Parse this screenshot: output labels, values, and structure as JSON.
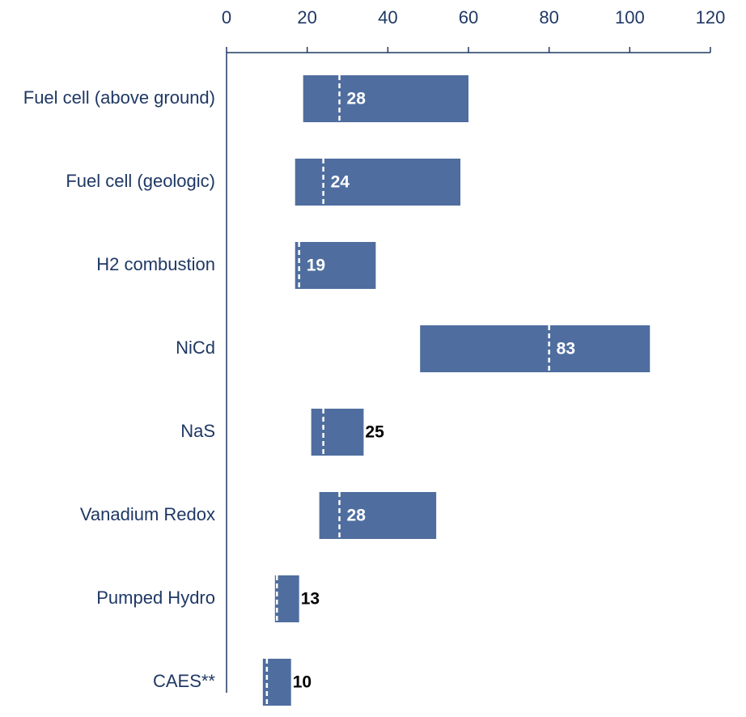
{
  "chart_data": {
    "type": "floating-bar",
    "categories": [
      "Fuel cell (above ground)",
      "Fuel cell (geologic)",
      "H2 combustion",
      "NiCd",
      "NaS",
      "Vanadium Redox",
      "Pumped Hydro",
      "CAES**"
    ],
    "low": [
      19,
      17,
      17,
      48,
      21,
      23,
      12,
      9
    ],
    "high": [
      60,
      58,
      37,
      105,
      34,
      52,
      18,
      16
    ],
    "median": [
      28,
      24,
      18,
      80,
      24,
      28,
      12.5,
      10
    ],
    "values": [
      28,
      24,
      19,
      83,
      25,
      28,
      13,
      10
    ],
    "color": "#4f6e9f",
    "xlim": [
      0,
      120
    ],
    "xticks": [
      0,
      20,
      40,
      60,
      80,
      100,
      120
    ]
  }
}
